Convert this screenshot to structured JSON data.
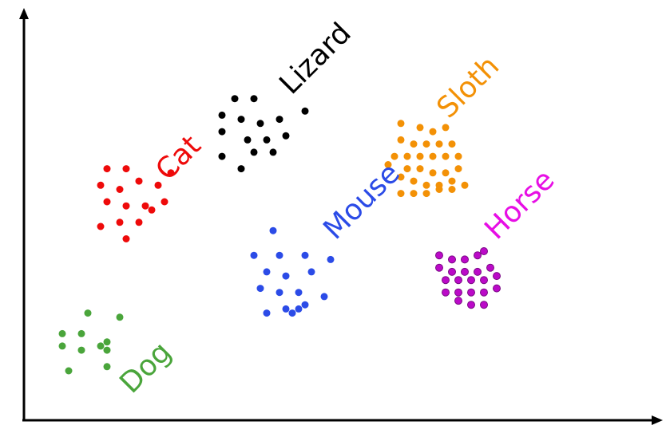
{
  "chart_data": {
    "type": "scatter",
    "title": "",
    "xlabel": "",
    "ylabel": "",
    "grid": false,
    "legend": "none",
    "xlim": [
      0,
      100
    ],
    "ylim": [
      0,
      100
    ],
    "series": [
      {
        "name": "Dog",
        "color": "#4aa53b",
        "points": [
          [
            10,
            26
          ],
          [
            6,
            21
          ],
          [
            9,
            21
          ],
          [
            13,
            19
          ],
          [
            15,
            25
          ],
          [
            6,
            18
          ],
          [
            9,
            17
          ],
          [
            13,
            17
          ],
          [
            13,
            13
          ],
          [
            12,
            18
          ],
          [
            7,
            12
          ]
        ]
      },
      {
        "name": "Cat",
        "color": "#ee0a0a",
        "points": [
          [
            13,
            61
          ],
          [
            16,
            61
          ],
          [
            12,
            57
          ],
          [
            15,
            56
          ],
          [
            18,
            58
          ],
          [
            21,
            57
          ],
          [
            23,
            60
          ],
          [
            13,
            53
          ],
          [
            16,
            52
          ],
          [
            19,
            52
          ],
          [
            22,
            53
          ],
          [
            12,
            47
          ],
          [
            15,
            48
          ],
          [
            18,
            48
          ],
          [
            16,
            44
          ],
          [
            20,
            51
          ]
        ]
      },
      {
        "name": "Lizard",
        "color": "#000000",
        "points": [
          [
            33,
            78
          ],
          [
            36,
            78
          ],
          [
            31,
            74
          ],
          [
            34,
            73
          ],
          [
            37,
            72
          ],
          [
            40,
            73
          ],
          [
            44,
            75
          ],
          [
            31,
            70
          ],
          [
            35,
            68
          ],
          [
            38,
            68
          ],
          [
            41,
            69
          ],
          [
            31,
            64
          ],
          [
            36,
            65
          ],
          [
            39,
            65
          ],
          [
            34,
            61
          ]
        ]
      },
      {
        "name": "Mouse",
        "color": "#2b4be7",
        "points": [
          [
            39,
            46
          ],
          [
            36,
            40
          ],
          [
            40,
            40
          ],
          [
            44,
            40
          ],
          [
            48,
            39
          ],
          [
            38,
            36
          ],
          [
            41,
            35
          ],
          [
            45,
            36
          ],
          [
            37,
            32
          ],
          [
            40,
            31
          ],
          [
            43,
            31
          ],
          [
            47,
            30
          ],
          [
            41,
            27
          ],
          [
            43,
            27
          ],
          [
            38,
            26
          ],
          [
            42,
            26
          ],
          [
            44,
            28
          ]
        ]
      },
      {
        "name": "Sloth",
        "color": "#f39106",
        "points": [
          [
            59,
            72
          ],
          [
            62,
            71
          ],
          [
            64,
            70
          ],
          [
            66,
            71
          ],
          [
            59,
            68
          ],
          [
            61,
            67
          ],
          [
            63,
            67
          ],
          [
            65,
            67
          ],
          [
            67,
            67
          ],
          [
            58,
            64
          ],
          [
            60,
            64
          ],
          [
            62,
            64
          ],
          [
            64,
            64
          ],
          [
            66,
            64
          ],
          [
            68,
            64
          ],
          [
            57,
            62
          ],
          [
            60,
            61
          ],
          [
            62,
            61
          ],
          [
            64,
            60
          ],
          [
            66,
            60
          ],
          [
            68,
            61
          ],
          [
            59,
            59
          ],
          [
            61,
            58
          ],
          [
            63,
            57
          ],
          [
            65,
            57
          ],
          [
            67,
            58
          ],
          [
            59,
            55
          ],
          [
            61,
            55
          ],
          [
            63,
            55
          ],
          [
            65,
            56
          ],
          [
            67,
            56
          ],
          [
            69,
            57
          ]
        ]
      },
      {
        "name": "Horse",
        "color": "#bb0ac8",
        "points": [
          [
            65,
            40
          ],
          [
            67,
            39
          ],
          [
            69,
            39
          ],
          [
            71,
            40
          ],
          [
            72,
            41
          ],
          [
            65,
            37
          ],
          [
            67,
            36
          ],
          [
            69,
            36
          ],
          [
            71,
            36
          ],
          [
            73,
            37
          ],
          [
            66,
            34
          ],
          [
            68,
            34
          ],
          [
            70,
            34
          ],
          [
            72,
            34
          ],
          [
            74,
            35
          ],
          [
            66,
            31
          ],
          [
            68,
            31
          ],
          [
            70,
            31
          ],
          [
            72,
            31
          ],
          [
            74,
            32
          ],
          [
            68,
            29
          ],
          [
            70,
            28
          ],
          [
            72,
            28
          ]
        ]
      }
    ],
    "annotations": [
      {
        "text": "Dog",
        "series": "Dog",
        "color": "#4aa53b"
      },
      {
        "text": "Cat",
        "series": "Cat",
        "color": "#ee0a0a"
      },
      {
        "text": "Lizard",
        "series": "Lizard",
        "color": "#000000"
      },
      {
        "text": "Mouse",
        "series": "Mouse",
        "color": "#2b4be7"
      },
      {
        "text": "Sloth",
        "series": "Sloth",
        "color": "#f39106"
      },
      {
        "text": "Horse",
        "series": "Horse",
        "color": "#e70ee5"
      }
    ]
  }
}
